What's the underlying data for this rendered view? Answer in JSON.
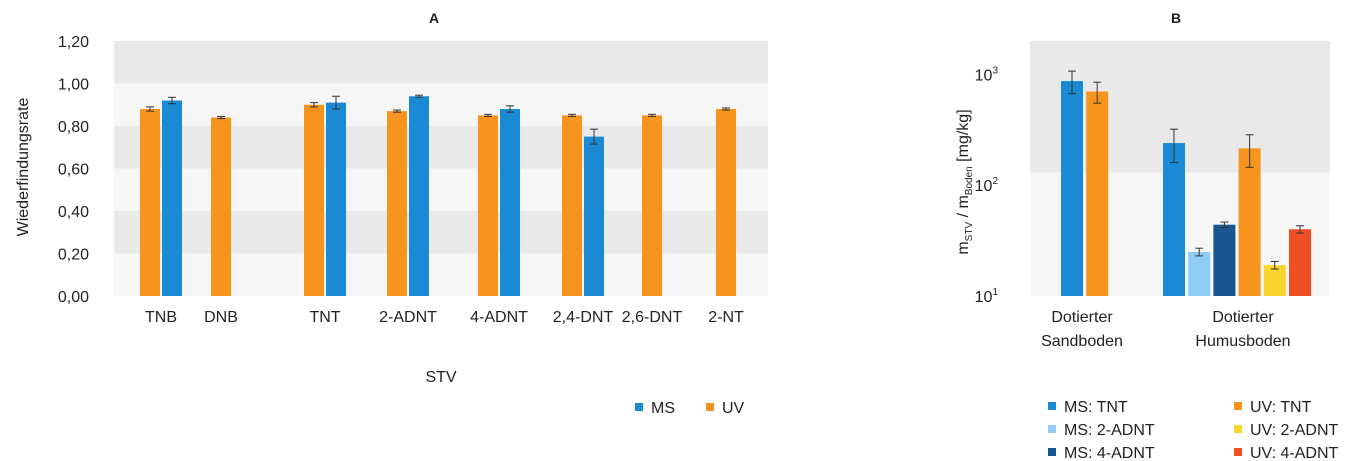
{
  "chart_data": [
    {
      "type": "bar",
      "title": "A",
      "xlabel": "STV",
      "ylabel": "Wiederfindungsrate",
      "ylim": [
        0,
        1.2
      ],
      "yticks": [
        "0,00",
        "0,20",
        "0,40",
        "0,60",
        "0,80",
        "1,00",
        "1,20"
      ],
      "ytick_values": [
        0,
        0.2,
        0.4,
        0.6,
        0.8,
        1.0,
        1.2
      ],
      "categories": [
        "TNB",
        "DNB",
        "TNT",
        "2-ADNT",
        "4-ADNT",
        "2,4-DNT",
        "2,6-DNT",
        "2-NT"
      ],
      "legend_position": "bottom-right",
      "series": [
        {
          "name": "UV",
          "color": "#f7941d",
          "values": [
            0.88,
            0.84,
            0.9,
            0.87,
            0.85,
            0.85,
            0.85,
            0.88
          ],
          "errors": [
            0.01,
            0.005,
            0.01,
            0.005,
            0.005,
            0.005,
            0.005,
            0.005
          ]
        },
        {
          "name": "MS",
          "color": "#1a8ad4",
          "values": [
            0.92,
            null,
            0.91,
            0.94,
            0.88,
            0.75,
            null,
            null
          ],
          "errors": [
            0.015,
            null,
            0.03,
            0.005,
            0.015,
            0.035,
            null,
            null
          ]
        }
      ],
      "legend": [
        {
          "name": "MS",
          "color": "#1a8ad4"
        },
        {
          "name": "UV",
          "color": "#f7941d"
        }
      ],
      "grid": "alternating bands"
    },
    {
      "type": "bar",
      "title": "B",
      "ylabel_main": "m",
      "ylabel_sub1": "STV",
      "ylabel_mid": " / m",
      "ylabel_sub2": "Boden",
      "ylabel_unit": " [mg/kg]",
      "yscale": "log",
      "ylim": [
        10,
        2000
      ],
      "yticks": [
        {
          "value": 10,
          "base": "10",
          "exp": "1"
        },
        {
          "value": 100,
          "base": "10",
          "exp": "2"
        },
        {
          "value": 1000,
          "base": "10",
          "exp": "3"
        }
      ],
      "groups": [
        {
          "label_lines": [
            "Dotierter",
            "Sandboden"
          ],
          "bars": [
            {
              "series": "MS: TNT",
              "value": 870,
              "error": 200
            },
            {
              "series": "UV: TNT",
              "value": 700,
              "error": 150
            }
          ]
        },
        {
          "label_lines": [
            "Dotierter",
            "Humusboden"
          ],
          "bars": [
            {
              "series": "MS: TNT",
              "value": 240,
              "error": 80
            },
            {
              "series": "MS: 2-ADNT",
              "value": 25,
              "error": 2
            },
            {
              "series": "MS: 4-ADNT",
              "value": 44,
              "error": 2.5
            },
            {
              "series": "UV: TNT",
              "value": 215,
              "error": 70
            },
            {
              "series": "UV: 2-ADNT",
              "value": 19,
              "error": 1.5
            },
            {
              "series": "UV: 4-ADNT",
              "value": 40,
              "error": 3
            }
          ]
        }
      ],
      "legend": [
        {
          "name": "MS: TNT",
          "color": "#1a8ad4"
        },
        {
          "name": "UV: TNT",
          "color": "#f7941d"
        },
        {
          "name": "MS: 2-ADNT",
          "color": "#8fcdf4"
        },
        {
          "name": "UV: 2-ADNT",
          "color": "#f9d62e"
        },
        {
          "name": "MS: 4-ADNT",
          "color": "#17568e"
        },
        {
          "name": "UV: 4-ADNT",
          "color": "#f04e23"
        }
      ],
      "grid": "alternating bands"
    }
  ]
}
